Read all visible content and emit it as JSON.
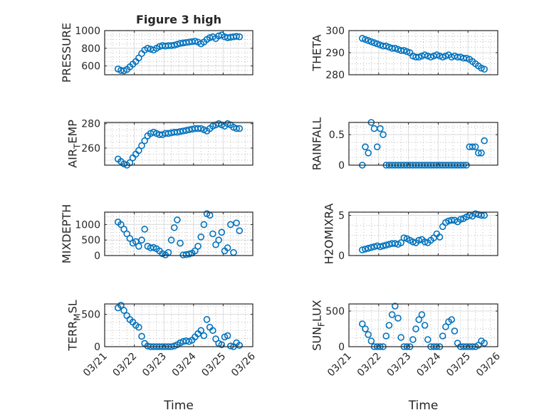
{
  "chart_data": [
    {
      "type": "scatter",
      "title": "Figure 3 high",
      "ylabel": {
        "main": "PRESSURE",
        "sub": "",
        "rest": ""
      },
      "ylim": [
        500,
        1000
      ],
      "yticks": [
        600,
        800,
        1000
      ],
      "values": [
        565,
        550,
        545,
        560,
        590,
        620,
        650,
        690,
        740,
        780,
        800,
        790,
        780,
        800,
        820,
        830,
        825,
        830,
        830,
        835,
        845,
        855,
        860,
        865,
        870,
        875,
        880,
        870,
        850,
        870,
        900,
        920,
        930,
        910,
        940,
        950,
        930,
        920,
        925,
        930,
        935,
        930
      ]
    },
    {
      "type": "scatter",
      "title": "",
      "ylabel": {
        "main": "THETA",
        "sub": "",
        "rest": ""
      },
      "ylim": [
        280,
        300
      ],
      "yticks": [
        280,
        290,
        300
      ],
      "values": [
        296.5,
        296,
        295.5,
        295,
        294.5,
        294,
        293.5,
        293,
        293,
        292.5,
        292,
        292,
        291.5,
        291,
        291,
        290.5,
        290,
        288.5,
        288,
        288,
        288.5,
        289,
        288.5,
        288,
        288.5,
        289,
        288.5,
        288,
        288.5,
        289,
        288,
        288.5,
        288,
        288,
        287.5,
        287.5,
        287,
        286,
        285,
        284,
        283,
        282.5
      ]
    },
    {
      "type": "scatter",
      "title": "",
      "ylabel": {
        "main": "AIR",
        "sub": "T",
        "rest": "EMP"
      },
      "ylim": [
        246,
        281
      ],
      "yticks": [
        260,
        280
      ],
      "values": [
        251,
        249,
        247,
        246,
        248,
        252,
        255,
        258,
        262,
        266,
        270,
        272,
        273,
        272,
        271,
        271,
        272,
        272,
        272.5,
        273,
        273,
        273.5,
        274,
        274.5,
        275,
        275.5,
        276,
        276,
        276,
        275,
        274,
        276,
        278,
        279,
        280,
        279,
        278,
        280,
        279,
        277,
        276,
        276
      ]
    },
    {
      "type": "scatter",
      "title": "",
      "ylabel": {
        "main": "RAINFALL",
        "sub": "",
        "rest": ""
      },
      "ylim": [
        0,
        0.7
      ],
      "yticks": [
        0,
        0.5
      ],
      "values": [
        0,
        0.3,
        0.2,
        0.7,
        0.6,
        0.3,
        0.6,
        0.5,
        0,
        0,
        0,
        0,
        0,
        0,
        0,
        0,
        0,
        0,
        0,
        0,
        0,
        0,
        0,
        0,
        0,
        0,
        0,
        0,
        0,
        0,
        0,
        0,
        0,
        0,
        0,
        0,
        0.3,
        0.3,
        0.3,
        0.2,
        0.2,
        0.4
      ]
    },
    {
      "type": "scatter",
      "title": "",
      "ylabel": {
        "main": "MIXDEPTH",
        "sub": "",
        "rest": ""
      },
      "ylim": [
        0,
        1400
      ],
      "yticks": [
        0,
        500,
        1000
      ],
      "values": [
        1080,
        1000,
        850,
        700,
        550,
        400,
        450,
        300,
        500,
        850,
        300,
        250,
        260,
        220,
        150,
        60,
        20,
        100,
        500,
        900,
        1150,
        400,
        20,
        30,
        50,
        80,
        150,
        300,
        600,
        1000,
        1350,
        1300,
        700,
        350,
        500,
        750,
        150,
        250,
        1000,
        100,
        1050,
        800
      ]
    },
    {
      "type": "scatter",
      "title": "",
      "ylabel": {
        "main": "H2OMIXRA",
        "sub": "",
        "rest": ""
      },
      "ylim": [
        0,
        5.4
      ],
      "yticks": [
        0,
        5
      ],
      "values": [
        0.7,
        0.8,
        0.9,
        1.0,
        1.1,
        1.2,
        1.1,
        1.2,
        1.3,
        1.4,
        1.5,
        1.5,
        1.4,
        1.6,
        2.2,
        2.1,
        1.9,
        1.7,
        1.6,
        1.9,
        2.0,
        1.7,
        1.6,
        1.9,
        2.2,
        2.7,
        2.3,
        3.6,
        4.1,
        4.3,
        4.4,
        4.4,
        4.2,
        4.5,
        4.6,
        4.8,
        5.0,
        4.9,
        5.2,
        5.1,
        5.0,
        5.0
      ]
    },
    {
      "type": "scatter",
      "title": "",
      "ylabel": {
        "main": "TERR",
        "sub": "M",
        "rest": "SL"
      },
      "ylim": [
        0,
        660
      ],
      "yticks": [
        0,
        500
      ],
      "xlabel": "Time",
      "values": [
        600,
        640,
        560,
        480,
        420,
        380,
        330,
        300,
        160,
        50,
        10,
        0,
        0,
        0,
        0,
        0,
        0,
        0,
        0,
        10,
        30,
        60,
        80,
        90,
        80,
        100,
        150,
        200,
        250,
        170,
        420,
        300,
        250,
        120,
        50,
        30,
        150,
        170,
        10,
        0,
        60,
        20
      ]
    },
    {
      "type": "scatter",
      "title": "",
      "ylabel": {
        "main": "SUN",
        "sub": "F",
        "rest": "LUX"
      },
      "ylim": [
        0,
        600
      ],
      "yticks": [
        0,
        500
      ],
      "xlabel": "Time",
      "values": [
        320,
        250,
        170,
        80,
        0,
        0,
        0,
        0,
        150,
        300,
        450,
        570,
        400,
        130,
        0,
        0,
        0,
        100,
        250,
        380,
        450,
        300,
        100,
        0,
        0,
        0,
        0,
        150,
        280,
        350,
        380,
        220,
        50,
        0,
        0,
        0,
        0,
        0,
        0,
        20,
        80,
        50
      ]
    }
  ],
  "x_days_since_0321": [
    0.45,
    0.55,
    0.65,
    0.75,
    0.85,
    0.95,
    1.05,
    1.15,
    1.25,
    1.35,
    1.45,
    1.55,
    1.65,
    1.75,
    1.85,
    1.95,
    2.05,
    2.15,
    2.25,
    2.35,
    2.45,
    2.55,
    2.65,
    2.75,
    2.85,
    2.95,
    3.05,
    3.15,
    3.25,
    3.35,
    3.45,
    3.55,
    3.65,
    3.75,
    3.85,
    3.95,
    4.05,
    4.15,
    4.25,
    4.35,
    4.45,
    4.55
  ],
  "xlim": [
    0,
    5
  ],
  "xtick_labels": [
    "03/21",
    "03/22",
    "03/23",
    "03/24",
    "03/25",
    "03/26"
  ],
  "marker_color": "#0072BD"
}
